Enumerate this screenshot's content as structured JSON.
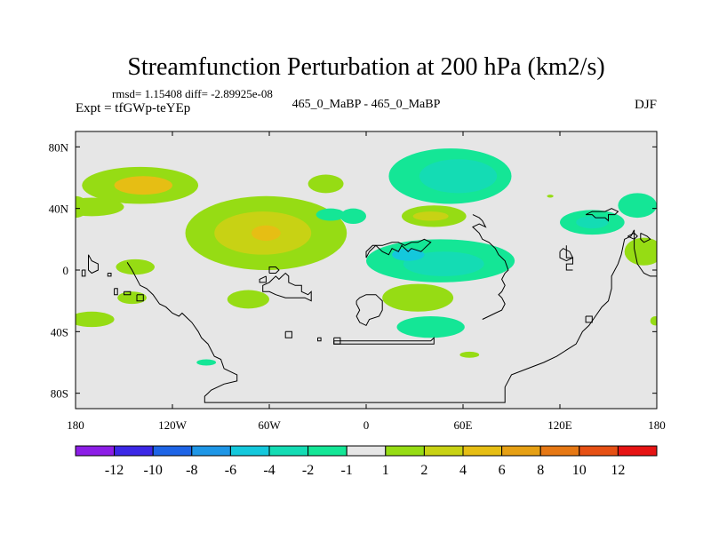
{
  "chart_data": {
    "type": "heatmap",
    "title": "Streamfunction Perturbation at 200 hPa (km2/s)",
    "stats": "rmsd= 1.15408 diff= -2.89925e-08",
    "subtitle_left": "Expt = tfGWp-teYEp",
    "subtitle_center": "465_0_MaBP - 465_0_MaBP",
    "subtitle_right": "DJF",
    "xlim": [
      -180,
      180
    ],
    "ylim": [
      -90,
      90
    ],
    "x_ticks": [
      {
        "value": -180,
        "label": "180"
      },
      {
        "value": -120,
        "label": "120W"
      },
      {
        "value": -60,
        "label": "60W"
      },
      {
        "value": 0,
        "label": "0"
      },
      {
        "value": 60,
        "label": "60E"
      },
      {
        "value": 120,
        "label": "120E"
      },
      {
        "value": 180,
        "label": "180"
      }
    ],
    "y_ticks": [
      {
        "value": 80,
        "label": "80N"
      },
      {
        "value": 40,
        "label": "40N"
      },
      {
        "value": 0,
        "label": "0"
      },
      {
        "value": -40,
        "label": "40S"
      },
      {
        "value": -80,
        "label": "80S"
      }
    ],
    "colorbar": {
      "levels": [
        "-12",
        "-10",
        "-8",
        "-6",
        "-4",
        "-2",
        "-1",
        "1",
        "2",
        "4",
        "6",
        "8",
        "10",
        "12"
      ],
      "colors": [
        "#8c1ee6",
        "#3c28e6",
        "#1e64e6",
        "#1e96e6",
        "#14c8dc",
        "#14dcb4",
        "#14e696",
        "#e6e6e6",
        "#96dc14",
        "#c8d214",
        "#e6be14",
        "#e6a014",
        "#e67814",
        "#e65014",
        "#e61414"
      ]
    },
    "anomalies": [
      {
        "name": "north-pacific-ridge",
        "lon": -140,
        "lat": 55,
        "rlon": 36,
        "rlat": 12,
        "level": 1
      },
      {
        "name": "north-pacific-ridge-core",
        "lon": -138,
        "lat": 55,
        "rlon": 18,
        "rlat": 6,
        "level": 3
      },
      {
        "name": "north-america-high",
        "lon": -62,
        "lat": 24,
        "rlon": 50,
        "rlat": 24,
        "level": 1
      },
      {
        "name": "north-america-high-mid",
        "lon": -64,
        "lat": 24,
        "rlon": 30,
        "rlat": 14,
        "level": 2
      },
      {
        "name": "north-america-high-core",
        "lon": -62,
        "lat": 24,
        "rlon": 9,
        "rlat": 5,
        "level": 3
      },
      {
        "name": "west-pacific-strip",
        "lon": -180,
        "lat": 41,
        "rlon": 8,
        "rlat": 7,
        "level": 1
      },
      {
        "name": "west-pacific-strip-east",
        "lon": -170,
        "lat": 41,
        "rlon": 20,
        "rlat": 6,
        "level": 1
      },
      {
        "name": "central-pacific-blob",
        "lon": -143,
        "lat": 2,
        "rlon": 12,
        "rlat": 5,
        "level": 1
      },
      {
        "name": "subtropical-pacific-small",
        "lon": -145,
        "lat": -18,
        "rlon": 9,
        "rlat": 4,
        "level": 1
      },
      {
        "name": "south-pacific-west",
        "lon": -170,
        "lat": -32,
        "rlon": 14,
        "rlat": 5,
        "level": 1
      },
      {
        "name": "north-atlantic-small",
        "lon": -25,
        "lat": 56,
        "rlon": 11,
        "rlat": 6,
        "level": 1
      },
      {
        "name": "atlantic-trough-small",
        "lon": -22,
        "lat": 36,
        "rlon": 9,
        "rlat": 4,
        "level": -1
      },
      {
        "name": "south-america-ridge",
        "lon": -73,
        "lat": -19,
        "rlon": 13,
        "rlat": 6,
        "level": 1
      },
      {
        "name": "southern-ocean-small",
        "lon": -99,
        "lat": -60,
        "rlon": 6,
        "rlat": 2,
        "level": -1
      },
      {
        "name": "eurasia-low",
        "lon": 52,
        "lat": 61,
        "rlon": 38,
        "rlat": 18,
        "level": -1
      },
      {
        "name": "eurasia-low-core",
        "lon": 57,
        "lat": 61,
        "rlon": 24,
        "rlat": 11,
        "level": -2
      },
      {
        "name": "asia-ridge",
        "lon": 42,
        "lat": 35,
        "rlon": 20,
        "rlat": 7,
        "level": 1
      },
      {
        "name": "asia-ridge-core",
        "lon": 40,
        "lat": 35,
        "rlon": 11,
        "rlat": 3,
        "level": 2
      },
      {
        "name": "atlantic-europe-small",
        "lon": -8,
        "lat": 35,
        "rlon": 8,
        "rlat": 5,
        "level": -1
      },
      {
        "name": "africa-low",
        "lon": 46,
        "lat": 6,
        "rlon": 46,
        "rlat": 14,
        "level": -1
      },
      {
        "name": "africa-low-core",
        "lon": 48,
        "lat": 4,
        "rlon": 25,
        "rlat": 8,
        "level": -2
      },
      {
        "name": "africa-low-inner",
        "lon": 26,
        "lat": 10,
        "rlon": 10,
        "rlat": 4,
        "level": -3
      },
      {
        "name": "indian-ocean-ridge",
        "lon": 32,
        "lat": -18,
        "rlon": 22,
        "rlat": 9,
        "level": 1
      },
      {
        "name": "south-indian-trough",
        "lon": 40,
        "lat": -37,
        "rlon": 21,
        "rlat": 7,
        "level": -1
      },
      {
        "name": "southern-indian-small",
        "lon": 64,
        "lat": -55,
        "rlon": 6,
        "rlat": 2,
        "level": 1
      },
      {
        "name": "east-asia-small",
        "lon": 114,
        "lat": 48,
        "rlon": 2,
        "rlat": 1,
        "level": 1
      },
      {
        "name": "pacific-jet-low",
        "lon": 140,
        "lat": 31,
        "rlon": 20,
        "rlat": 8,
        "level": -1
      },
      {
        "name": "pacific-jet-low-core",
        "lon": 140,
        "lat": 31,
        "rlon": 10,
        "rlat": 4,
        "level": -2
      },
      {
        "name": "far-east-pacific-low",
        "lon": 168,
        "lat": 42,
        "rlon": 12,
        "rlat": 8,
        "level": -1
      },
      {
        "name": "east-equatorial-ridge",
        "lon": 172,
        "lat": 12,
        "rlon": 12,
        "rlat": 9,
        "level": 1
      },
      {
        "name": "east-south-small",
        "lon": 179,
        "lat": -33,
        "rlon": 3,
        "rlat": 3,
        "level": 1
      }
    ],
    "coastlines": [
      [
        [
          -148,
          5
        ],
        [
          -145,
          0
        ],
        [
          -140,
          -10
        ],
        [
          -136,
          -12
        ],
        [
          -132,
          -16
        ],
        [
          -128,
          -22
        ],
        [
          -124,
          -24
        ],
        [
          -120,
          -28
        ],
        [
          -116,
          -30
        ],
        [
          -114,
          -28
        ],
        [
          -110,
          -32
        ],
        [
          -108,
          -34
        ],
        [
          -104,
          -40
        ],
        [
          -102,
          -44
        ],
        [
          -98,
          -48
        ],
        [
          -96,
          -52
        ],
        [
          -94,
          -56
        ],
        [
          -90,
          -58
        ],
        [
          -88,
          -64
        ],
        [
          -84,
          -66
        ],
        [
          -80,
          -68
        ],
        [
          -80,
          -72
        ],
        [
          -88,
          -74
        ],
        [
          -96,
          -78
        ],
        [
          -98,
          -80
        ],
        [
          -100,
          -82
        ],
        [
          -100,
          -86
        ],
        [
          -60,
          -86
        ],
        [
          -20,
          -86
        ],
        [
          20,
          -86
        ],
        [
          60,
          -86
        ],
        [
          86,
          -86
        ],
        [
          86,
          -76
        ],
        [
          88,
          -72
        ],
        [
          90,
          -68
        ],
        [
          100,
          -64
        ],
        [
          110,
          -60
        ],
        [
          118,
          -56
        ],
        [
          124,
          -52
        ],
        [
          130,
          -48
        ],
        [
          134,
          -40
        ],
        [
          138,
          -36
        ],
        [
          142,
          -30
        ],
        [
          146,
          -24
        ],
        [
          150,
          -20
        ],
        [
          152,
          -12
        ],
        [
          152,
          -4
        ],
        [
          156,
          4
        ],
        [
          158,
          10
        ],
        [
          160,
          20
        ],
        [
          164,
          22
        ],
        [
          166,
          26
        ],
        [
          166,
          14
        ],
        [
          168,
          4
        ],
        [
          172,
          -2
        ],
        [
          176,
          -4
        ],
        [
          180,
          -4
        ]
      ],
      [
        [
          -58,
          -6
        ],
        [
          -56,
          -4
        ],
        [
          -54,
          -6
        ],
        [
          -52,
          -4
        ],
        [
          -50,
          -2
        ],
        [
          -48,
          -4
        ],
        [
          -48,
          -8
        ],
        [
          -44,
          -10
        ],
        [
          -40,
          -10
        ],
        [
          -40,
          -14
        ],
        [
          -36,
          -16
        ],
        [
          -34,
          -14
        ],
        [
          -34,
          -20
        ],
        [
          -38,
          -18
        ],
        [
          -44,
          -18
        ],
        [
          -50,
          -18
        ],
        [
          -56,
          -16
        ],
        [
          -60,
          -14
        ],
        [
          -64,
          -14
        ],
        [
          -64,
          -10
        ],
        [
          -60,
          -8
        ],
        [
          -58,
          -6
        ]
      ],
      [
        [
          -60,
          -2
        ],
        [
          -60,
          2
        ],
        [
          -56,
          2
        ],
        [
          -54,
          0
        ],
        [
          -56,
          -2
        ],
        [
          -60,
          -2
        ]
      ],
      [
        [
          -62,
          -4
        ],
        [
          -62,
          -8
        ],
        [
          -66,
          -8
        ],
        [
          -66,
          -6
        ],
        [
          -62,
          -4
        ]
      ],
      [
        [
          -6,
          -20
        ],
        [
          -4,
          -18
        ],
        [
          0,
          -16
        ],
        [
          6,
          -16
        ],
        [
          8,
          -18
        ],
        [
          10,
          -20
        ],
        [
          10,
          -26
        ],
        [
          8,
          -30
        ],
        [
          2,
          -32
        ],
        [
          0,
          -36
        ],
        [
          -4,
          -34
        ],
        [
          -6,
          -30
        ],
        [
          -4,
          -26
        ],
        [
          -6,
          -22
        ],
        [
          -6,
          -20
        ]
      ],
      [
        [
          -50,
          -40
        ],
        [
          -46,
          -40
        ],
        [
          -46,
          -44
        ],
        [
          -50,
          -44
        ],
        [
          -50,
          -40
        ]
      ],
      [
        [
          -30,
          -44
        ],
        [
          -28,
          -44
        ],
        [
          -28,
          -46
        ],
        [
          -30,
          -46
        ],
        [
          -30,
          -44
        ]
      ],
      [
        [
          -20,
          -44
        ],
        [
          -16,
          -44
        ],
        [
          -16,
          -48
        ],
        [
          -20,
          -48
        ],
        [
          -20,
          -44
        ]
      ],
      [
        [
          -20,
          -46
        ],
        [
          40,
          -46
        ],
        [
          42,
          -44
        ],
        [
          42,
          -48
        ],
        [
          -20,
          -48
        ],
        [
          -20,
          -46
        ]
      ],
      [
        [
          72,
          -32
        ],
        [
          76,
          -30
        ],
        [
          80,
          -28
        ],
        [
          84,
          -26
        ],
        [
          86,
          -22
        ],
        [
          84,
          -18
        ],
        [
          82,
          -16
        ],
        [
          84,
          -14
        ],
        [
          86,
          -10
        ],
        [
          84,
          -6
        ],
        [
          86,
          -2
        ],
        [
          88,
          0
        ],
        [
          86,
          6
        ],
        [
          82,
          10
        ],
        [
          80,
          14
        ],
        [
          76,
          18
        ],
        [
          72,
          20
        ],
        [
          70,
          24
        ],
        [
          66,
          28
        ],
        [
          70,
          30
        ],
        [
          74,
          28
        ],
        [
          72,
          32
        ],
        [
          70,
          34
        ],
        [
          66,
          36
        ]
      ],
      [
        [
          136,
          -30
        ],
        [
          140,
          -30
        ],
        [
          140,
          -34
        ],
        [
          136,
          -34
        ],
        [
          136,
          -30
        ]
      ],
      [
        [
          0,
          8
        ],
        [
          2,
          12
        ],
        [
          6,
          16
        ],
        [
          10,
          12
        ],
        [
          14,
          10
        ],
        [
          16,
          14
        ],
        [
          20,
          12
        ],
        [
          22,
          16
        ],
        [
          26,
          12
        ],
        [
          28,
          14
        ],
        [
          34,
          12
        ],
        [
          36,
          14
        ],
        [
          38,
          16
        ],
        [
          40,
          18
        ],
        [
          36,
          20
        ],
        [
          32,
          18
        ],
        [
          28,
          18
        ],
        [
          24,
          16
        ],
        [
          20,
          18
        ],
        [
          16,
          18
        ],
        [
          10,
          16
        ],
        [
          4,
          16
        ],
        [
          0,
          12
        ],
        [
          0,
          8
        ]
      ],
      [
        [
          120,
          12
        ],
        [
          122,
          14
        ],
        [
          126,
          12
        ],
        [
          128,
          8
        ],
        [
          124,
          6
        ],
        [
          120,
          8
        ],
        [
          120,
          12
        ]
      ],
      [
        [
          124,
          16
        ],
        [
          124,
          8
        ],
        [
          128,
          8
        ],
        [
          128,
          4
        ],
        [
          124,
          4
        ],
        [
          124,
          0
        ],
        [
          128,
          0
        ]
      ],
      [
        [
          -172,
          10
        ],
        [
          -170,
          6
        ],
        [
          -166,
          4
        ],
        [
          -166,
          0
        ],
        [
          -170,
          -2
        ],
        [
          -172,
          0
        ],
        [
          -172,
          10
        ]
      ],
      [
        [
          -176,
          0
        ],
        [
          -174,
          0
        ],
        [
          -174,
          -4
        ],
        [
          -176,
          -4
        ],
        [
          -176,
          0
        ]
      ],
      [
        [
          -160,
          -2
        ],
        [
          -158,
          -2
        ],
        [
          -158,
          -4
        ],
        [
          -160,
          -4
        ],
        [
          -160,
          -2
        ]
      ],
      [
        [
          -156,
          -12
        ],
        [
          -154,
          -12
        ],
        [
          -154,
          -16
        ],
        [
          -156,
          -16
        ],
        [
          -156,
          -12
        ]
      ],
      [
        [
          -150,
          -14
        ],
        [
          -146,
          -14
        ],
        [
          -146,
          -16
        ],
        [
          -150,
          -16
        ],
        [
          -150,
          -14
        ]
      ],
      [
        [
          -142,
          -16
        ],
        [
          -138,
          -16
        ],
        [
          -138,
          -20
        ],
        [
          -142,
          -20
        ],
        [
          -142,
          -16
        ]
      ],
      [
        [
          136,
          36
        ],
        [
          140,
          36
        ],
        [
          142,
          34
        ],
        [
          148,
          34
        ],
        [
          150,
          32
        ],
        [
          150,
          36
        ],
        [
          154,
          36
        ],
        [
          156,
          38
        ],
        [
          152,
          40
        ],
        [
          148,
          38
        ],
        [
          144,
          38
        ],
        [
          140,
          38
        ],
        [
          136,
          36
        ]
      ],
      [
        [
          170,
          24
        ],
        [
          174,
          22
        ],
        [
          176,
          20
        ],
        [
          172,
          18
        ],
        [
          170,
          20
        ],
        [
          170,
          24
        ]
      ],
      [
        [
          162,
          22
        ],
        [
          166,
          24
        ],
        [
          168,
          22
        ],
        [
          166,
          20
        ],
        [
          162,
          22
        ]
      ]
    ]
  }
}
